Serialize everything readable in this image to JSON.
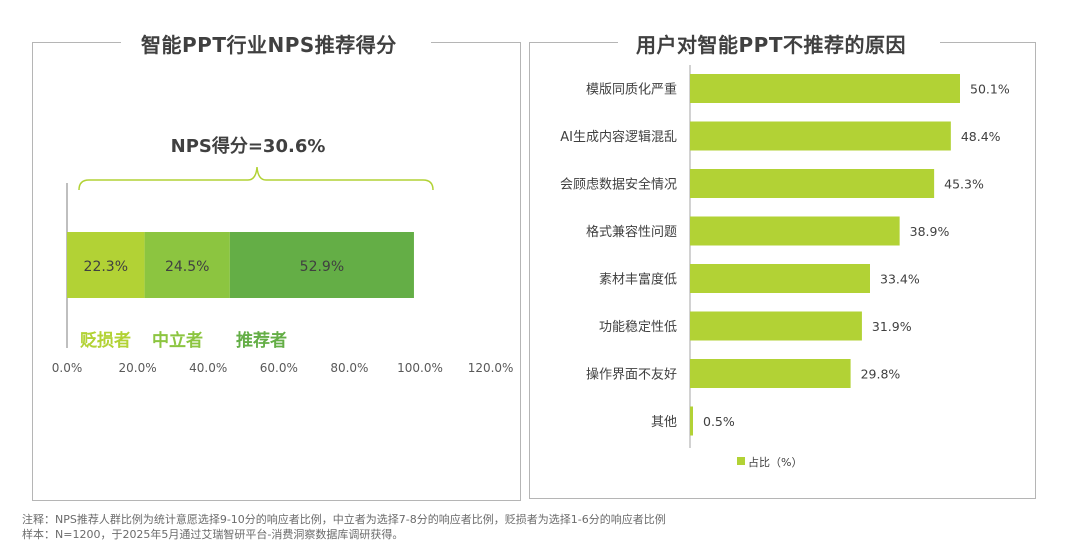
{
  "left_panel": {
    "title": "智能PPT行业NPS推荐得分"
  },
  "right_panel": {
    "title": "用户对智能PPT不推荐的原因"
  },
  "notes": {
    "line1": "注释：NPS推荐人群比例为统计意愿选择9-10分的响应者比例，中立者为选择7-8分的响应者比例，贬损者为选择1-6分的响应者比例",
    "line2": "样本：N=1200，于2025年5月通过艾瑞智研平台-消费洞察数据库调研获得。"
  },
  "colors": {
    "detractor": "#b2d235",
    "passive": "#8cc540",
    "promoter": "#64ae46",
    "reason_bar": "#b2d235",
    "brace": "#b2d235"
  },
  "chart_data": [
    {
      "type": "bar",
      "orientation": "horizontal-stacked",
      "title": "智能PPT行业NPS推荐得分",
      "annotation": "NPS得分=30.6%",
      "series": [
        {
          "name": "贬损者",
          "values": [
            22.3
          ],
          "label": "22.3%"
        },
        {
          "name": "中立者",
          "values": [
            24.5
          ],
          "label": "24.5%"
        },
        {
          "name": "推荐者",
          "values": [
            52.9
          ],
          "label": "52.9%"
        }
      ],
      "xlim": [
        0,
        120
      ],
      "xticks": [
        "0.0%",
        "20.0%",
        "40.0%",
        "60.0%",
        "80.0%",
        "100.0%",
        "120.0%"
      ],
      "xtick_values": [
        0,
        20,
        40,
        60,
        80,
        100,
        120
      ],
      "legend": [
        "贬损者",
        "中立者",
        "推荐者"
      ],
      "legend_placement": "below-bar",
      "grid": false
    },
    {
      "type": "bar",
      "orientation": "horizontal",
      "title": "用户对智能PPT不推荐的原因",
      "categories": [
        "模版同质化严重",
        "AI生成内容逻辑混乱",
        "会顾虑数据安全情况",
        "格式兼容性问题",
        "素材丰富度低",
        "功能稳定性低",
        "操作界面不友好",
        "其他"
      ],
      "values": [
        50.1,
        48.4,
        45.3,
        38.9,
        33.4,
        31.9,
        29.8,
        0.5
      ],
      "value_labels": [
        "50.1%",
        "48.4%",
        "45.3%",
        "38.9%",
        "33.4%",
        "31.9%",
        "29.8%",
        "0.5%"
      ],
      "legend": [
        "占比（%）"
      ],
      "legend_placement": "bottom",
      "xlim": [
        0,
        60
      ],
      "grid": false
    }
  ]
}
